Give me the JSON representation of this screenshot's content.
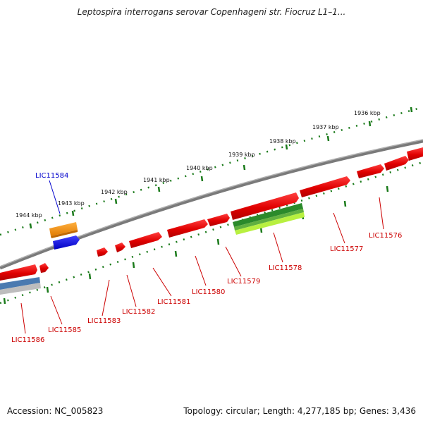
{
  "title": "Leptospira interrogans serovar Copenhageni str. Fiocruz L1–1...",
  "footer": {
    "accession": "Accession: NC_005823",
    "topology": "Topology: circular; Length: 4,277,185 bp; Genes: 3,436"
  },
  "colors": {
    "backbone": "#8a8a8a",
    "tick": "#1a7a1a",
    "gene_label": "#cc0000",
    "highlight_label": "#0000cc",
    "forward_gene": "#ee1111",
    "orange_feature": "#f2901d",
    "blue_feature": "#1010e0",
    "green_feature": "#2b8a2b",
    "lime_feature": "#b8f040",
    "steel_feature": "#4a7ab0",
    "grey_feature": "#bdbdbd"
  },
  "scale_labels": [
    "1944 kbp",
    "1943 kbp",
    "1942 kbp",
    "1941 kbp",
    "1940 kbp",
    "1939 kbp",
    "1938 kbp",
    "1937 kbp",
    "1936 kbp"
  ],
  "gene_labels": [
    "LIC11584",
    "LIC11585",
    "LIC11586",
    "LIC11583",
    "LIC11582",
    "LIC11581",
    "LIC11580",
    "LIC11579",
    "LIC11578",
    "LIC11577",
    "LIC11576"
  ]
}
